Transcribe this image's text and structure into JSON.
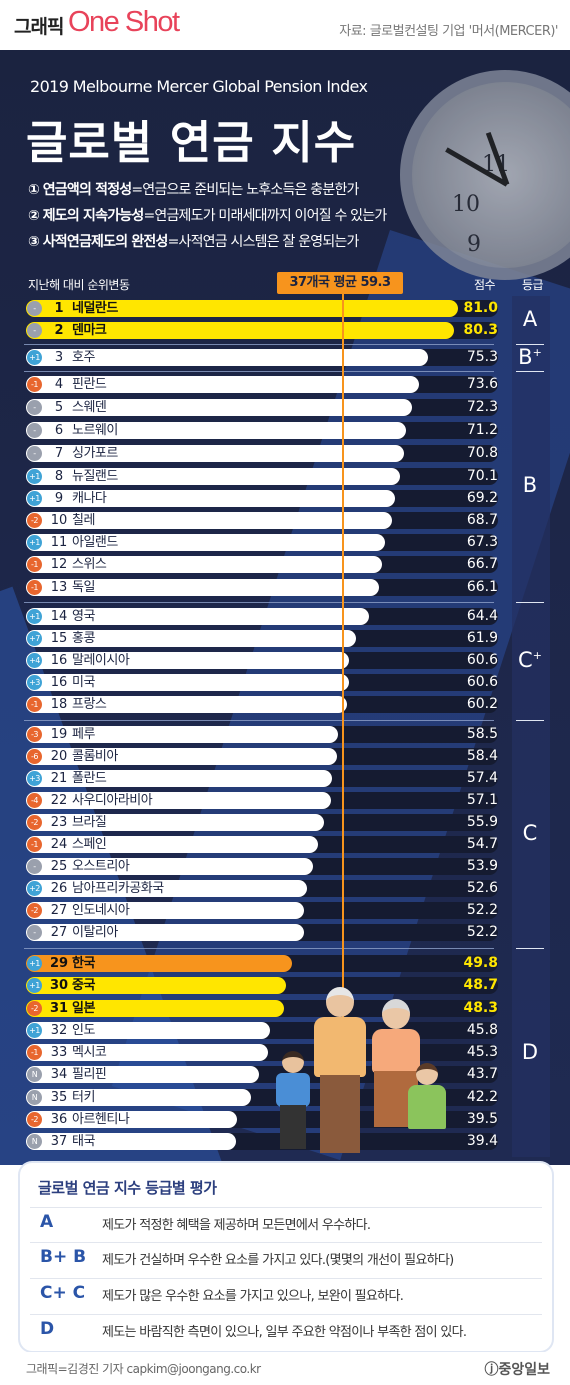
{
  "header": {
    "brand_ko": "그래픽",
    "brand_en": "One Shot",
    "source": "자료: 글로벌컨설팅 기업 '머서(MERCER)'"
  },
  "intro": {
    "subtitle": "2019 Melbourne Mercer Global Pension Index",
    "title": "글로벌 연금 지수",
    "criteria": [
      {
        "num": "①",
        "name": "연금액의 적정성",
        "desc": "=연금으로 준비되는 노후소득은 충분한가"
      },
      {
        "num": "②",
        "name": "제도의 지속가능성",
        "desc": "=연금제도가 미래세대까지 이어질 수 있는가"
      },
      {
        "num": "③",
        "name": "사적연금제도의 완전성",
        "desc": "=사적연금 시스템은 잘 운영되는가"
      }
    ]
  },
  "chart_data": {
    "type": "bar",
    "orientation": "horizontal",
    "column_headers": {
      "change": "지난해 대비 순위변동",
      "score": "점수",
      "grade": "등급"
    },
    "average": {
      "label": "37개국 평균 59.3",
      "value": 59.3
    },
    "xlim": [
      0,
      81
    ],
    "rows": [
      {
        "change": "-",
        "rank": "1",
        "country": "네덜란드",
        "score": 81.0,
        "score_label": "81.0",
        "highlight": "yellow"
      },
      {
        "change": "-",
        "rank": "2",
        "country": "덴마크",
        "score": 80.3,
        "score_label": "80.3",
        "highlight": "yellow"
      },
      {
        "change": "+1",
        "rank": "3",
        "country": "호주",
        "score": 75.3,
        "score_label": "75.3",
        "highlight": ""
      },
      {
        "change": "-1",
        "rank": "4",
        "country": "핀란드",
        "score": 73.6,
        "score_label": "73.6",
        "highlight": ""
      },
      {
        "change": "-",
        "rank": "5",
        "country": "스웨덴",
        "score": 72.3,
        "score_label": "72.3",
        "highlight": ""
      },
      {
        "change": "-",
        "rank": "6",
        "country": "노르웨이",
        "score": 71.2,
        "score_label": "71.2",
        "highlight": ""
      },
      {
        "change": "-",
        "rank": "7",
        "country": "싱가포르",
        "score": 70.8,
        "score_label": "70.8",
        "highlight": ""
      },
      {
        "change": "+1",
        "rank": "8",
        "country": "뉴질랜드",
        "score": 70.1,
        "score_label": "70.1",
        "highlight": ""
      },
      {
        "change": "+1",
        "rank": "9",
        "country": "캐나다",
        "score": 69.2,
        "score_label": "69.2",
        "highlight": ""
      },
      {
        "change": "-2",
        "rank": "10",
        "country": "칠레",
        "score": 68.7,
        "score_label": "68.7",
        "highlight": ""
      },
      {
        "change": "+1",
        "rank": "11",
        "country": "아일랜드",
        "score": 67.3,
        "score_label": "67.3",
        "highlight": ""
      },
      {
        "change": "-1",
        "rank": "12",
        "country": "스위스",
        "score": 66.7,
        "score_label": "66.7",
        "highlight": ""
      },
      {
        "change": "-1",
        "rank": "13",
        "country": "독일",
        "score": 66.1,
        "score_label": "66.1",
        "highlight": ""
      },
      {
        "change": "+1",
        "rank": "14",
        "country": "영국",
        "score": 64.4,
        "score_label": "64.4",
        "highlight": ""
      },
      {
        "change": "+7",
        "rank": "15",
        "country": "홍콩",
        "score": 61.9,
        "score_label": "61.9",
        "highlight": ""
      },
      {
        "change": "+4",
        "rank": "16",
        "country": "말레이시아",
        "score": 60.6,
        "score_label": "60.6",
        "highlight": ""
      },
      {
        "change": "+3",
        "rank": "16",
        "country": "미국",
        "score": 60.6,
        "score_label": "60.6",
        "highlight": ""
      },
      {
        "change": "-1",
        "rank": "18",
        "country": "프랑스",
        "score": 60.2,
        "score_label": "60.2",
        "highlight": ""
      },
      {
        "change": "-3",
        "rank": "19",
        "country": "페루",
        "score": 58.5,
        "score_label": "58.5",
        "highlight": ""
      },
      {
        "change": "-6",
        "rank": "20",
        "country": "콜롬비아",
        "score": 58.4,
        "score_label": "58.4",
        "highlight": ""
      },
      {
        "change": "+3",
        "rank": "21",
        "country": "폴란드",
        "score": 57.4,
        "score_label": "57.4",
        "highlight": ""
      },
      {
        "change": "-4",
        "rank": "22",
        "country": "사우디아라비아",
        "score": 57.1,
        "score_label": "57.1",
        "highlight": ""
      },
      {
        "change": "-2",
        "rank": "23",
        "country": "브라질",
        "score": 55.9,
        "score_label": "55.9",
        "highlight": ""
      },
      {
        "change": "-1",
        "rank": "24",
        "country": "스페인",
        "score": 54.7,
        "score_label": "54.7",
        "highlight": ""
      },
      {
        "change": "-",
        "rank": "25",
        "country": "오스트리아",
        "score": 53.9,
        "score_label": "53.9",
        "highlight": ""
      },
      {
        "change": "+2",
        "rank": "26",
        "country": "남아프리카공화국",
        "score": 52.6,
        "score_label": "52.6",
        "highlight": ""
      },
      {
        "change": "-2",
        "rank": "27",
        "country": "인도네시아",
        "score": 52.2,
        "score_label": "52.2",
        "highlight": ""
      },
      {
        "change": "-",
        "rank": "27",
        "country": "이탈리아",
        "score": 52.2,
        "score_label": "52.2",
        "highlight": ""
      },
      {
        "change": "+1",
        "rank": "29",
        "country": "한국",
        "score": 49.8,
        "score_label": "49.8",
        "highlight": "orange"
      },
      {
        "change": "+1",
        "rank": "30",
        "country": "중국",
        "score": 48.7,
        "score_label": "48.7",
        "highlight": "yellow"
      },
      {
        "change": "-2",
        "rank": "31",
        "country": "일본",
        "score": 48.3,
        "score_label": "48.3",
        "highlight": "yellow"
      },
      {
        "change": "+1",
        "rank": "32",
        "country": "인도",
        "score": 45.8,
        "score_label": "45.8",
        "highlight": ""
      },
      {
        "change": "-1",
        "rank": "33",
        "country": "멕시코",
        "score": 45.3,
        "score_label": "45.3",
        "highlight": ""
      },
      {
        "change": "N",
        "rank": "34",
        "country": "필리핀",
        "score": 43.7,
        "score_label": "43.7",
        "highlight": ""
      },
      {
        "change": "N",
        "rank": "35",
        "country": "터키",
        "score": 42.2,
        "score_label": "42.2",
        "highlight": ""
      },
      {
        "change": "-2",
        "rank": "36",
        "country": "아르헨티나",
        "score": 39.5,
        "score_label": "39.5",
        "highlight": ""
      },
      {
        "change": "N",
        "rank": "37",
        "country": "태국",
        "score": 39.4,
        "score_label": "39.4",
        "highlight": ""
      }
    ],
    "grades": [
      {
        "label": "A",
        "sup": "",
        "from": 0,
        "to": 1
      },
      {
        "label": "B",
        "sup": "+",
        "from": 2,
        "to": 2
      },
      {
        "label": "B",
        "sup": "",
        "from": 3,
        "to": 12
      },
      {
        "label": "C",
        "sup": "+",
        "from": 13,
        "to": 17
      },
      {
        "label": "C",
        "sup": "",
        "from": 18,
        "to": 27
      },
      {
        "label": "D",
        "sup": "",
        "from": 28,
        "to": 36
      }
    ],
    "colors": {
      "bar": "#ffffff",
      "highlight_yellow": "#ffe600",
      "highlight_orange": "#f7941d",
      "score_text": "#ffffff",
      "score_highlight_text": "#ffe600",
      "badge_up": "#3fa3d6",
      "badge_down": "#e8662e",
      "badge_same": "#9aa0ad",
      "badge_new": "#9aa0ad",
      "average_line": "#f7941d"
    }
  },
  "legend": {
    "title": "글로벌 연금 지수 등급별 평가",
    "rows": [
      {
        "grade": "A",
        "text": "제도가 적정한 혜택을 제공하며 모든면에서 우수하다."
      },
      {
        "grade": "B+ B",
        "text": "제도가 건실하며 우수한 요소를 가지고 있다.(몇몇의 개선이 필요하다)"
      },
      {
        "grade": "C+ C",
        "text": "제도가 많은 우수한 요소를 가지고 있으나, 보완이 필요하다."
      },
      {
        "grade": "D",
        "text": "제도는 바람직한 측면이 있으나, 일부 주요한 약점이나 부족한 점이 있다."
      }
    ]
  },
  "footer": {
    "credit": "그래픽=김경진 기자 capkim@joongang.co.kr",
    "logo": "ⓙ중앙일보"
  }
}
